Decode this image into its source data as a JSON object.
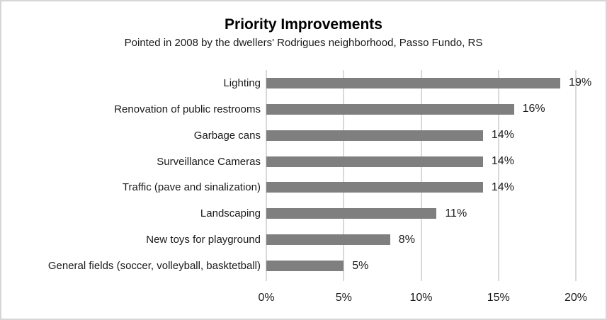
{
  "window": {
    "background_color": "#FFFFFF",
    "border_color": "#D6D6D6"
  },
  "chart_data": {
    "type": "bar",
    "orientation": "horizontal",
    "title": "Priority Improvements",
    "subtitle": "Pointed in 2008 by the dwellers' Rodrigues neighborhood, Passo Fundo, RS",
    "categories": [
      "Lighting",
      "Renovation of public restrooms",
      "Garbage cans",
      "Surveillance Cameras",
      "Traffic (pave and sinalization)",
      "Landscaping",
      "New toys for playground",
      "General fields (soccer, volleyball, basktetball)"
    ],
    "values": [
      19,
      16,
      14,
      14,
      14,
      11,
      8,
      5
    ],
    "data_labels": [
      "19%",
      "16%",
      "14%",
      "14%",
      "14%",
      "11%",
      "8%",
      "5%"
    ],
    "x_ticks": [
      "0%",
      "5%",
      "10%",
      "15%",
      "20%"
    ],
    "xlim": [
      0,
      20
    ],
    "xlabel": "",
    "ylabel": "",
    "grid": "vertical-major",
    "legend": "none",
    "bar_color": "#7F7F7F",
    "gridline_color": "#D9D9D9",
    "text_color": "#1A1A1A"
  }
}
